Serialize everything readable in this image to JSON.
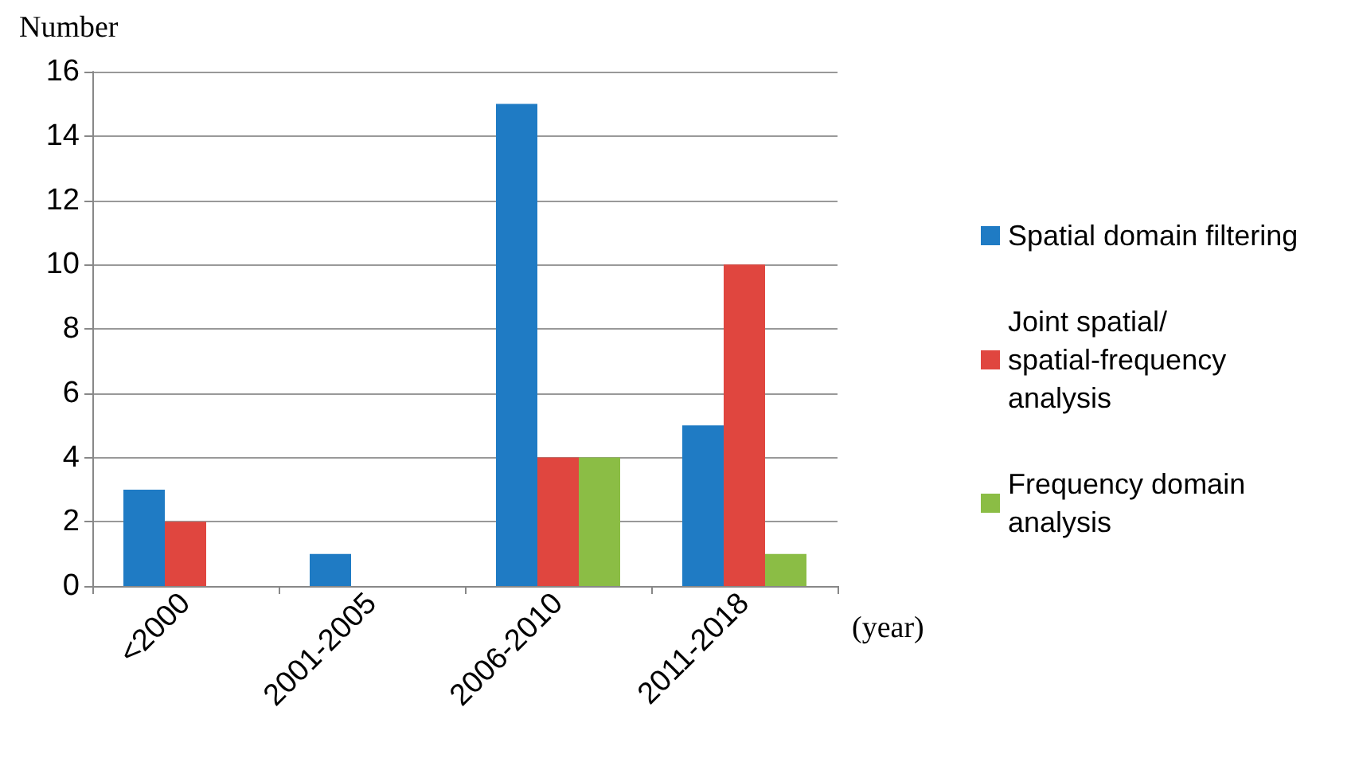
{
  "chart_data": {
    "type": "bar",
    "ylabel": "Number",
    "xlabel": "(year)",
    "categories": [
      "<2000",
      "2001-2005",
      "2006-2010",
      "2011-2018"
    ],
    "series": [
      {
        "name": "Spatial domain filtering",
        "color": "#1f7bc4",
        "values": [
          3,
          1,
          15,
          5
        ]
      },
      {
        "name": "Joint spatial/spatial-frequency analysis",
        "color": "#e0463f",
        "values": [
          2,
          0,
          4,
          10
        ]
      },
      {
        "name": "Frequency domain analysis",
        "color": "#8bbd45",
        "values": [
          0,
          0,
          4,
          1
        ]
      }
    ],
    "ylim": [
      0,
      16
    ],
    "yticks": [
      0,
      2,
      4,
      6,
      8,
      10,
      12,
      14,
      16
    ],
    "grid": "y",
    "legend": "right"
  }
}
